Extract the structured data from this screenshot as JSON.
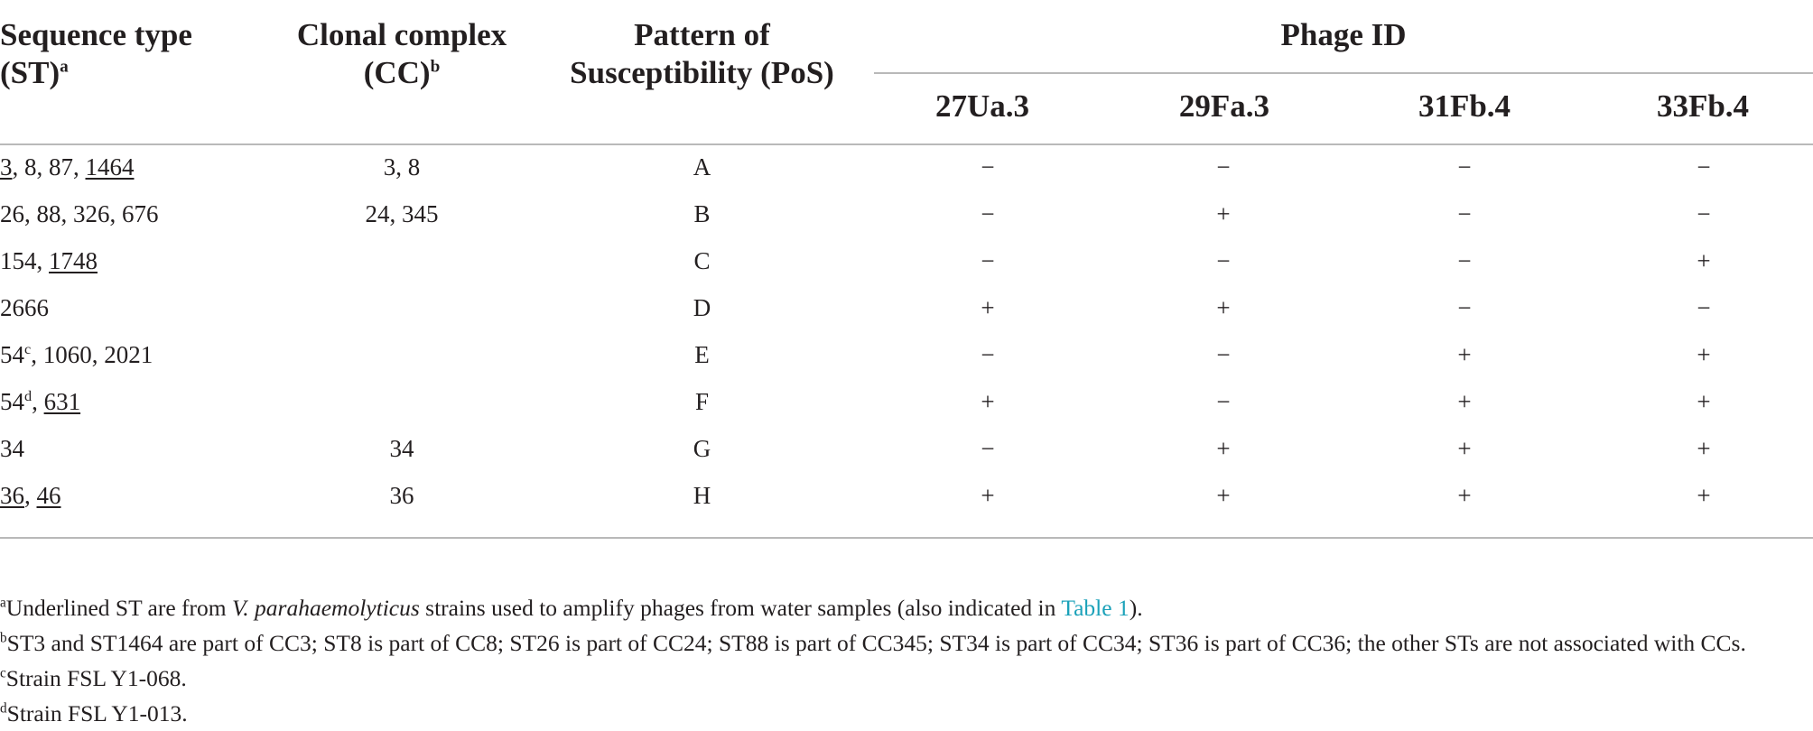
{
  "headers": {
    "seq_type_line1": "Sequence type",
    "seq_type_line2": "(ST)",
    "seq_type_sup": "a",
    "clonal_line1": "Clonal complex",
    "clonal_line2": "(CC)",
    "clonal_sup": "b",
    "pos_line1": "Pattern of",
    "pos_line2": "Susceptibility (PoS)",
    "phage_group": "Phage ID",
    "phages": [
      "27Ua.3",
      "29Fa.3",
      "31Fb.4",
      "33Fb.4"
    ]
  },
  "rows": [
    {
      "st": [
        {
          "t": "3",
          "u": true
        },
        {
          "t": ", 8, 87, "
        },
        {
          "t": "1464",
          "u": true
        }
      ],
      "cc": "3, 8",
      "pos": "A",
      "vals": [
        "−",
        "−",
        "−",
        "−"
      ]
    },
    {
      "st": [
        {
          "t": "26, 88, 326, 676"
        }
      ],
      "cc": "24, 345",
      "pos": "B",
      "vals": [
        "−",
        "+",
        "−",
        "−"
      ]
    },
    {
      "st": [
        {
          "t": "154, "
        },
        {
          "t": "1748",
          "u": true
        }
      ],
      "cc": "",
      "pos": "C",
      "vals": [
        "−",
        "−",
        "−",
        "+"
      ]
    },
    {
      "st": [
        {
          "t": "2666"
        }
      ],
      "cc": "",
      "pos": "D",
      "vals": [
        "+",
        "+",
        "−",
        "−"
      ]
    },
    {
      "st": [
        {
          "t": "54"
        },
        {
          "t": "c",
          "sup": true
        },
        {
          "t": ", 1060, 2021"
        }
      ],
      "cc": "",
      "pos": "E",
      "vals": [
        "−",
        "−",
        "+",
        "+"
      ]
    },
    {
      "st": [
        {
          "t": "54"
        },
        {
          "t": "d",
          "sup": true
        },
        {
          "t": ", "
        },
        {
          "t": "631",
          "u": true
        }
      ],
      "cc": "",
      "pos": "F",
      "vals": [
        "+",
        "−",
        "+",
        "+"
      ]
    },
    {
      "st": [
        {
          "t": "34"
        }
      ],
      "cc": "34",
      "pos": "G",
      "vals": [
        "−",
        "+",
        "+",
        "+"
      ]
    },
    {
      "st": [
        {
          "t": "36",
          "u": true
        },
        {
          "t": ", "
        },
        {
          "t": "46",
          "u": true
        }
      ],
      "cc": "36",
      "pos": "H",
      "vals": [
        "+",
        "+",
        "+",
        "+"
      ]
    }
  ],
  "footnotes": {
    "a": {
      "mark": "a",
      "before": "Underlined ST are from ",
      "italic": "V. parahaemolyticus",
      "after": " strains used to amplify phages from water samples (also indicated in ",
      "link": "Table 1",
      "end": ")."
    },
    "b": {
      "mark": "b",
      "text": "ST3 and ST1464 are part of CC3; ST8 is part of CC8; ST26 is part of CC24; ST88 is part of CC345; ST34 is part of CC34; ST36 is part of CC36; the other STs are not associated with CCs."
    },
    "c": {
      "mark": "c",
      "text": "Strain FSL Y1-068."
    },
    "d": {
      "mark": "d",
      "text": "Strain FSL Y1-013."
    }
  },
  "colors": {
    "text": "#231f20",
    "rule": "#b9b9b9",
    "link": "#1aa1b9"
  }
}
